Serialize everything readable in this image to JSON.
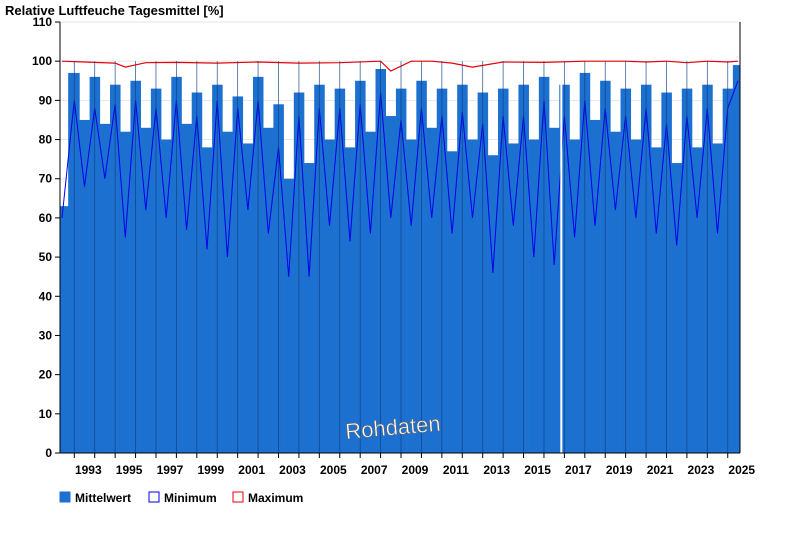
{
  "chart_data": {
    "type": "bar",
    "title": "Relative Luftfeuche Tagesmittel [%]",
    "watermark": "Rohdaten",
    "xlim": [
      1992.3,
      2025.6
    ],
    "ylim": [
      0,
      110
    ],
    "yticks": [
      0,
      10,
      20,
      30,
      40,
      50,
      60,
      70,
      80,
      90,
      100,
      110
    ],
    "xticks": [
      "1993",
      "1995",
      "1997",
      "1999",
      "2001",
      "2003",
      "2005",
      "2007",
      "2009",
      "2011",
      "2013",
      "2015",
      "2017",
      "2019",
      "2021",
      "2023",
      "2025"
    ],
    "grid": true,
    "legend_position": "bottom-left",
    "gap": [
      2016.8,
      2016.9
    ],
    "series": [
      {
        "name": "Mittelwert",
        "color": "#1c70d0",
        "x": [
          1992.4,
          1993.0,
          1993.5,
          1994.0,
          1994.5,
          1995.0,
          1995.5,
          1996.0,
          1996.5,
          1997.0,
          1997.5,
          1998.0,
          1998.5,
          1999.0,
          1999.5,
          2000.0,
          2000.5,
          2001.0,
          2001.5,
          2002.0,
          2002.5,
          2003.0,
          2003.5,
          2004.0,
          2004.5,
          2005.0,
          2005.5,
          2006.0,
          2006.5,
          2007.0,
          2007.5,
          2008.0,
          2008.5,
          2009.0,
          2009.5,
          2010.0,
          2010.5,
          2011.0,
          2011.5,
          2012.0,
          2012.5,
          2013.0,
          2013.5,
          2014.0,
          2014.5,
          2015.0,
          2015.5,
          2016.0,
          2016.5,
          2017.0,
          2017.5,
          2018.0,
          2018.5,
          2019.0,
          2019.5,
          2020.0,
          2020.5,
          2021.0,
          2021.5,
          2022.0,
          2022.5,
          2023.0,
          2023.5,
          2024.0,
          2024.5,
          2025.0,
          2025.5
        ],
        "values": [
          63,
          97,
          85,
          96,
          84,
          94,
          82,
          95,
          83,
          93,
          80,
          96,
          84,
          92,
          78,
          94,
          82,
          91,
          79,
          96,
          83,
          89,
          70,
          92,
          74,
          94,
          80,
          93,
          78,
          95,
          82,
          98,
          86,
          93,
          80,
          95,
          83,
          93,
          77,
          94,
          80,
          92,
          76,
          93,
          79,
          94,
          80,
          96,
          83,
          94,
          80,
          97,
          85,
          95,
          82,
          93,
          80,
          94,
          78,
          92,
          74,
          93,
          78,
          94,
          79,
          93,
          99
        ]
      },
      {
        "name": "Minimum",
        "color": "#0000ee",
        "x": [
          1992.4,
          1993.0,
          1993.5,
          1994.0,
          1994.5,
          1995.0,
          1995.5,
          1996.0,
          1996.5,
          1997.0,
          1997.5,
          1998.0,
          1998.5,
          1999.0,
          1999.5,
          2000.0,
          2000.5,
          2001.0,
          2001.5,
          2002.0,
          2002.5,
          2003.0,
          2003.5,
          2004.0,
          2004.5,
          2005.0,
          2005.5,
          2006.0,
          2006.5,
          2007.0,
          2007.5,
          2008.0,
          2008.5,
          2009.0,
          2009.5,
          2010.0,
          2010.5,
          2011.0,
          2011.5,
          2012.0,
          2012.5,
          2013.0,
          2013.5,
          2014.0,
          2014.5,
          2015.0,
          2015.5,
          2016.0,
          2016.5,
          2017.0,
          2017.5,
          2018.0,
          2018.5,
          2019.0,
          2019.5,
          2020.0,
          2020.5,
          2021.0,
          2021.5,
          2022.0,
          2022.5,
          2023.0,
          2023.5,
          2024.0,
          2024.5,
          2025.0,
          2025.5
        ],
        "values": [
          60,
          90,
          68,
          88,
          70,
          89,
          55,
          90,
          62,
          88,
          60,
          90,
          57,
          86,
          52,
          90,
          50,
          88,
          62,
          90,
          56,
          78,
          45,
          86,
          45,
          88,
          58,
          88,
          54,
          89,
          56,
          92,
          60,
          85,
          58,
          88,
          60,
          86,
          56,
          87,
          60,
          84,
          46,
          86,
          58,
          86,
          50,
          90,
          48,
          86,
          55,
          90,
          58,
          88,
          62,
          86,
          60,
          88,
          56,
          84,
          53,
          86,
          60,
          88,
          56,
          88,
          95
        ]
      },
      {
        "name": "Maximum",
        "color": "#e8000b",
        "x": [
          1992.4,
          1993.5,
          1995.0,
          1995.5,
          1996.5,
          1998.0,
          2000.0,
          2002.0,
          2004.0,
          2006.0,
          2008.0,
          2008.5,
          2009.5,
          2010.5,
          2011.5,
          2012.5,
          2014.0,
          2016.0,
          2018.0,
          2020.0,
          2021.0,
          2022.0,
          2023.0,
          2024.0,
          2025.0,
          2025.5
        ],
        "values": [
          100,
          99.8,
          99.5,
          98.5,
          99.6,
          99.7,
          99.5,
          99.8,
          99.5,
          99.6,
          100,
          97.5,
          100,
          100,
          99.5,
          98.5,
          99.8,
          99.7,
          100,
          100,
          99.8,
          100,
          99.6,
          100,
          99.8,
          100
        ]
      }
    ]
  }
}
